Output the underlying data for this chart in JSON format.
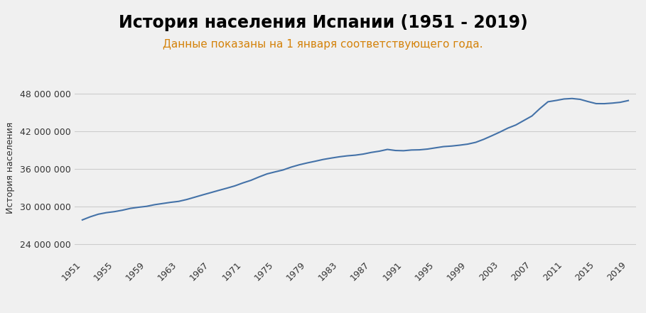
{
  "title": "История населения Испании (1951 - 2019)",
  "subtitle": "Данные показаны на 1 января соответствующего года.",
  "ylabel": "История населения",
  "background_color": "#f0f0f0",
  "plot_background_color": "#f0f0f0",
  "line_color": "#4472a8",
  "title_fontsize": 17,
  "subtitle_fontsize": 11,
  "subtitle_color": "#d4820a",
  "ylabel_color": "#333333",
  "tick_label_color": "#333333",
  "ytick_labels": [
    "24 000 000",
    "30 000 000",
    "36 000 000",
    "42 000 000",
    "48 000 000"
  ],
  "ytick_values": [
    24000000,
    30000000,
    36000000,
    42000000,
    48000000
  ],
  "ylim": [
    22000000,
    50500000
  ],
  "xlim": [
    1950,
    2020
  ],
  "xtick_years": [
    1951,
    1955,
    1959,
    1963,
    1967,
    1971,
    1975,
    1979,
    1983,
    1987,
    1991,
    1995,
    1999,
    2003,
    2007,
    2011,
    2015,
    2019
  ],
  "years": [
    1951,
    1952,
    1953,
    1954,
    1955,
    1956,
    1957,
    1958,
    1959,
    1960,
    1961,
    1962,
    1963,
    1964,
    1965,
    1966,
    1967,
    1968,
    1969,
    1970,
    1971,
    1972,
    1973,
    1974,
    1975,
    1976,
    1977,
    1978,
    1979,
    1980,
    1981,
    1982,
    1983,
    1984,
    1985,
    1986,
    1987,
    1988,
    1989,
    1990,
    1991,
    1992,
    1993,
    1994,
    1995,
    1996,
    1997,
    1998,
    1999,
    2000,
    2001,
    2002,
    2003,
    2004,
    2005,
    2006,
    2007,
    2008,
    2009,
    2010,
    2011,
    2012,
    2013,
    2014,
    2015,
    2016,
    2017,
    2018,
    2019
  ],
  "population": [
    27868000,
    28374000,
    28786000,
    29030000,
    29191000,
    29423000,
    29715000,
    29892000,
    30039000,
    30301000,
    30490000,
    30679000,
    30832000,
    31129000,
    31499000,
    31871000,
    32228000,
    32591000,
    32940000,
    33309000,
    33779000,
    34194000,
    34730000,
    35219000,
    35542000,
    35849000,
    36300000,
    36669000,
    36972000,
    37242000,
    37529000,
    37749000,
    37951000,
    38108000,
    38215000,
    38391000,
    38654000,
    38851000,
    39131000,
    38960000,
    38924000,
    39039000,
    39068000,
    39188000,
    39388000,
    39583000,
    39671000,
    39809000,
    39979000,
    40263000,
    40747000,
    41314000,
    41900000,
    42534000,
    43038000,
    43758000,
    44475000,
    45668000,
    46745000,
    46951000,
    47190000,
    47265000,
    47130000,
    46771000,
    46449000,
    46440000,
    46528000,
    46659000,
    46937000
  ]
}
